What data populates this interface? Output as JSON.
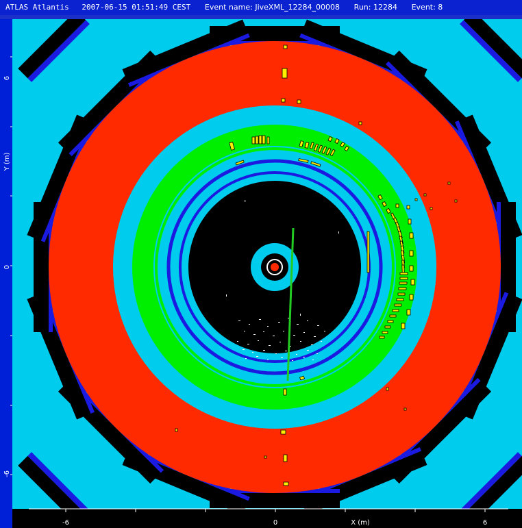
{
  "titlebar": {
    "app_name": "ATLAS Atlantis",
    "timestamp": "2007-06-15 01:51:49 CEST",
    "event_name": "Event name: JiveXML_12284_00008",
    "run": "Run: 12284",
    "event": "Event: 8"
  },
  "axes": {
    "y_label": "Y (m)",
    "x_label": "X (m)",
    "y_ticks": [
      "6",
      "0",
      "-6"
    ],
    "x_ticks": [
      "-6",
      "0",
      "6"
    ]
  },
  "colors": {
    "frame_blue": "#1a30c8",
    "cyan": "#00ccee",
    "red": "#ff2a00",
    "green": "#00ee00",
    "blue_ring": "#1a1ae0",
    "hit_yellow": "#ffee00",
    "track_green": "#22cc22"
  }
}
